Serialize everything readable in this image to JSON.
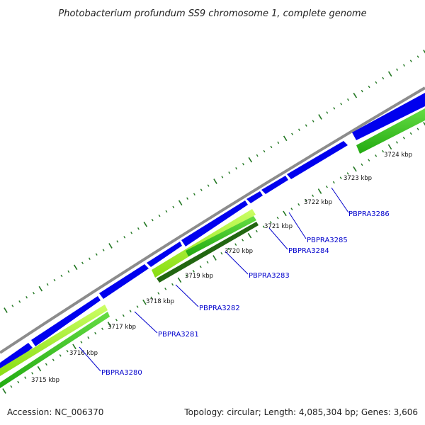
{
  "title": "Photobacterium profundum SS9 chromosome 1, complete genome",
  "accession": "Accession: NC_006370",
  "summary": "Topology: circular; Length: 4,085,304 bp; Genes: 3,606",
  "colors": {
    "backbone": "#8c8c8c",
    "cds_forward": "#0000ee",
    "gene_light": "#99ee22",
    "gene_green": "#33bb22",
    "gene_dark": "#226611",
    "tick": "#227722",
    "label": "#0000cc"
  },
  "scale_ticks": [
    "3715 kbp",
    "3716 kbp",
    "3717 kbp",
    "3718 kbp",
    "3719 kbp",
    "3720 kbp",
    "3721 kbp",
    "3722 kbp",
    "3723 kbp",
    "3724 kbp"
  ],
  "gene_labels": [
    "PBPRA3280",
    "PBPRA3281",
    "PBPRA3282",
    "PBPRA3283",
    "PBPRA3284",
    "PBPRA3285",
    "PBPRA3286"
  ]
}
